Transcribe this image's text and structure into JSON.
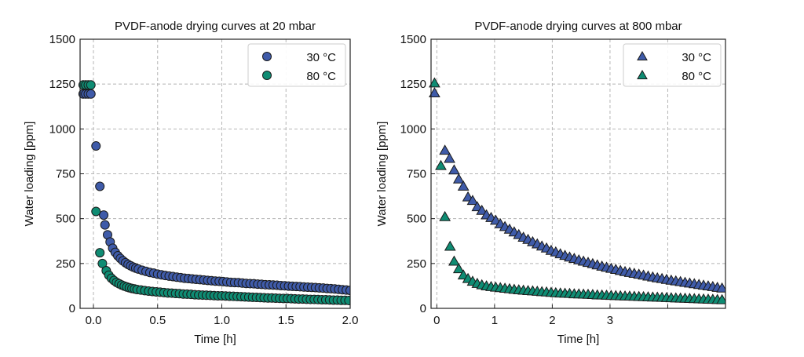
{
  "chart_data": [
    {
      "type": "scatter",
      "title": "PVDF-anode drying curves at 20 mbar",
      "xlabel": "Time [h]",
      "ylabel": "Water loading [ppm]",
      "xlim": [
        -0.104,
        2.0
      ],
      "ylim": [
        0,
        1500
      ],
      "xticks": [
        0.0,
        0.5,
        1.0,
        1.5,
        2.0
      ],
      "xtick_labels": [
        "0.0",
        "0.5",
        "1.0",
        "1.5",
        "2.0"
      ],
      "yticks": [
        0,
        250,
        500,
        750,
        1000,
        1250,
        1500
      ],
      "ytick_labels": [
        "0",
        "250",
        "500",
        "750",
        "1000",
        "1250",
        "1500"
      ],
      "grid": true,
      "legend_position": "top-right",
      "marker": "circle",
      "series": [
        {
          "name": "30 °C",
          "color": "#3F5BA9",
          "x": [
            -0.08,
            -0.06,
            -0.04,
            -0.02,
            0.02,
            0.05,
            0.08,
            0.09,
            0.11,
            0.13,
            0.15,
            0.17,
            0.19,
            0.21,
            0.23,
            0.25,
            0.27,
            0.29,
            0.31,
            0.33,
            0.35,
            0.38,
            0.41,
            0.44,
            0.47,
            0.5,
            0.53,
            0.56,
            0.59,
            0.62,
            0.65,
            0.68,
            0.71,
            0.74,
            0.77,
            0.8,
            0.83,
            0.86,
            0.89,
            0.92,
            0.95,
            0.98,
            1.01,
            1.04,
            1.07,
            1.1,
            1.13,
            1.16,
            1.19,
            1.22,
            1.25,
            1.28,
            1.31,
            1.34,
            1.37,
            1.4,
            1.43,
            1.46,
            1.49,
            1.52,
            1.55,
            1.58,
            1.61,
            1.64,
            1.67,
            1.7,
            1.73,
            1.76,
            1.79,
            1.82,
            1.85,
            1.88,
            1.91,
            1.94,
            1.97,
            2.0
          ],
          "y": [
            1195,
            1195,
            1195,
            1195,
            905,
            680,
            520,
            465,
            410,
            370,
            335,
            312,
            293,
            278,
            265,
            254,
            245,
            237,
            230,
            224,
            219,
            212,
            206,
            200,
            196,
            191,
            187,
            183,
            180,
            177,
            174,
            171,
            168,
            166,
            164,
            162,
            160,
            158,
            156,
            154,
            152,
            151,
            149,
            147,
            145,
            144,
            143,
            141,
            139,
            138,
            137,
            135,
            134,
            132,
            131,
            130,
            129,
            127,
            126,
            124,
            123,
            122,
            121,
            119,
            118,
            117,
            116,
            114,
            113,
            111,
            110,
            108,
            106,
            104,
            102,
            100
          ]
        },
        {
          "name": "80 °C",
          "color": "#0F8C73",
          "x": [
            -0.08,
            -0.06,
            -0.04,
            -0.02,
            0.02,
            0.05,
            0.07,
            0.1,
            0.12,
            0.14,
            0.16,
            0.18,
            0.2,
            0.22,
            0.24,
            0.26,
            0.28,
            0.3,
            0.32,
            0.34,
            0.37,
            0.4,
            0.43,
            0.46,
            0.49,
            0.52,
            0.55,
            0.58,
            0.61,
            0.64,
            0.67,
            0.7,
            0.73,
            0.76,
            0.79,
            0.82,
            0.85,
            0.88,
            0.91,
            0.94,
            0.97,
            1.0,
            1.03,
            1.06,
            1.09,
            1.12,
            1.15,
            1.18,
            1.21,
            1.24,
            1.27,
            1.3,
            1.33,
            1.36,
            1.39,
            1.42,
            1.45,
            1.48,
            1.51,
            1.54,
            1.57,
            1.6,
            1.63,
            1.66,
            1.69,
            1.72,
            1.75,
            1.78,
            1.81,
            1.84,
            1.87,
            1.9,
            1.93,
            1.96,
            1.99
          ],
          "y": [
            1245,
            1245,
            1245,
            1245,
            540,
            310,
            250,
            210,
            185,
            168,
            155,
            145,
            137,
            130,
            124,
            119,
            115,
            111,
            108,
            105,
            102,
            99,
            96,
            94,
            92,
            90,
            88,
            86,
            85,
            83,
            82,
            80,
            79,
            78,
            76,
            75,
            74,
            73,
            72,
            71,
            70,
            70,
            69,
            68,
            67,
            66,
            65,
            64,
            63,
            62,
            61,
            60,
            59,
            58,
            58,
            57,
            56,
            55,
            55,
            54,
            53,
            52,
            52,
            51,
            50,
            50,
            49,
            48,
            48,
            47,
            46,
            46,
            45,
            45,
            44
          ]
        }
      ]
    },
    {
      "type": "scatter",
      "title": "PVDF-anode drying curves at 800 mbar",
      "xlabel": "Time [h]",
      "ylabel": "Water loading [ppm]",
      "xlim": [
        -0.1,
        5.0
      ],
      "ylim": [
        0,
        1500
      ],
      "xticks": [
        0,
        1,
        2,
        3,
        4
      ],
      "xtick_labels": [
        "0",
        "1",
        "2",
        "3",
        ""
      ],
      "yticks": [
        0,
        250,
        500,
        750,
        1000,
        1250,
        1500
      ],
      "ytick_labels": [
        "0",
        "250",
        "500",
        "750",
        "1000",
        "1250",
        "1500"
      ],
      "grid": true,
      "legend_position": "top-right",
      "marker": "triangle",
      "series": [
        {
          "name": "30 °C",
          "color": "#3F5BA9",
          "x": [
            -0.04,
            0.14,
            0.22,
            0.3,
            0.38,
            0.46,
            0.54,
            0.62,
            0.7,
            0.78,
            0.86,
            0.94,
            1.02,
            1.1,
            1.18,
            1.26,
            1.34,
            1.42,
            1.5,
            1.58,
            1.66,
            1.74,
            1.82,
            1.9,
            1.98,
            2.06,
            2.14,
            2.22,
            2.3,
            2.38,
            2.46,
            2.54,
            2.62,
            2.7,
            2.78,
            2.86,
            2.94,
            3.02,
            3.1,
            3.18,
            3.26,
            3.34,
            3.42,
            3.5,
            3.58,
            3.66,
            3.74,
            3.82,
            3.9,
            3.98,
            4.06,
            4.14,
            4.22,
            4.3,
            4.38,
            4.46,
            4.54,
            4.62,
            4.7,
            4.78,
            4.86,
            4.94
          ],
          "y": [
            1200,
            880,
            835,
            770,
            720,
            680,
            620,
            600,
            565,
            545,
            520,
            505,
            490,
            470,
            455,
            440,
            425,
            410,
            395,
            383,
            370,
            358,
            346,
            335,
            322,
            313,
            303,
            294,
            285,
            277,
            269,
            262,
            255,
            248,
            241,
            234,
            228,
            222,
            216,
            210,
            204,
            199,
            194,
            189,
            184,
            179,
            174,
            169,
            165,
            160,
            156,
            152,
            148,
            144,
            140,
            136,
            132,
            128,
            124,
            120,
            116,
            112
          ]
        },
        {
          "name": "80 °C",
          "color": "#0F8C73",
          "x": [
            -0.04,
            0.07,
            0.14,
            0.23,
            0.3,
            0.38,
            0.46,
            0.54,
            0.62,
            0.7,
            0.78,
            0.86,
            0.94,
            1.02,
            1.1,
            1.18,
            1.26,
            1.34,
            1.42,
            1.5,
            1.58,
            1.66,
            1.74,
            1.82,
            1.9,
            1.98,
            2.06,
            2.14,
            2.22,
            2.3,
            2.38,
            2.46,
            2.54,
            2.62,
            2.7,
            2.78,
            2.86,
            2.94,
            3.02,
            3.1,
            3.18,
            3.26,
            3.34,
            3.42,
            3.5,
            3.58,
            3.66,
            3.74,
            3.82,
            3.9,
            3.98,
            4.06,
            4.14,
            4.22,
            4.3,
            4.38,
            4.46,
            4.54,
            4.62,
            4.7,
            4.78,
            4.86,
            4.94
          ],
          "y": [
            1255,
            795,
            510,
            345,
            262,
            220,
            185,
            165,
            150,
            138,
            130,
            124,
            120,
            117,
            114,
            111,
            108,
            105,
            102,
            100,
            98,
            96,
            94,
            92,
            90,
            88,
            86,
            84,
            83,
            82,
            80,
            79,
            78,
            77,
            76,
            74,
            73,
            72,
            71,
            70,
            69,
            68,
            67,
            66,
            65,
            64,
            63,
            62,
            61,
            60,
            59,
            58,
            57,
            56,
            55,
            54,
            53,
            52,
            51,
            50,
            49,
            48,
            47
          ]
        }
      ]
    }
  ]
}
